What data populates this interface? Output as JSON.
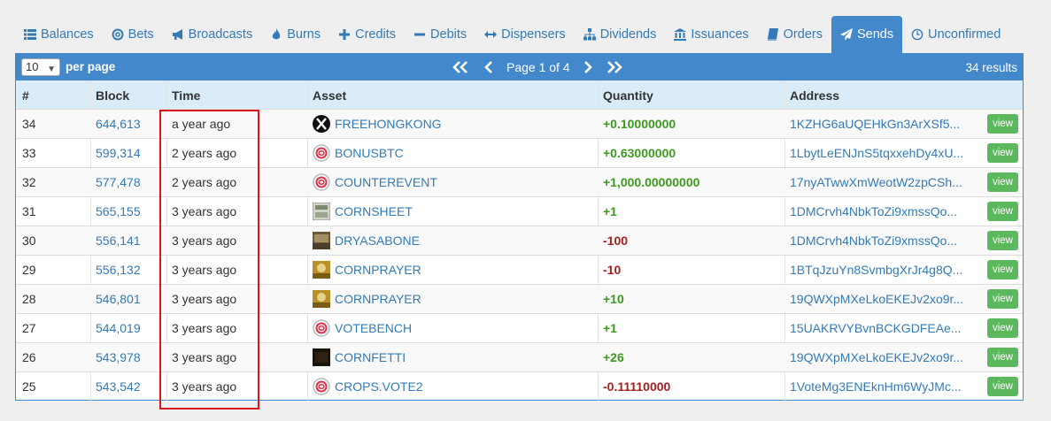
{
  "tabs": [
    {
      "label": "Balances",
      "icon": "list-icon"
    },
    {
      "label": "Bets",
      "icon": "bullseye-icon"
    },
    {
      "label": "Broadcasts",
      "icon": "bullhorn-icon"
    },
    {
      "label": "Burns",
      "icon": "fire-icon"
    },
    {
      "label": "Credits",
      "icon": "plus-icon"
    },
    {
      "label": "Debits",
      "icon": "minus-icon"
    },
    {
      "label": "Dispensers",
      "icon": "arrows-h-icon"
    },
    {
      "label": "Dividends",
      "icon": "sitemap-icon"
    },
    {
      "label": "Issuances",
      "icon": "bank-icon"
    },
    {
      "label": "Orders",
      "icon": "book-icon"
    },
    {
      "label": "Sends",
      "icon": "paper-plane-icon",
      "active": true
    },
    {
      "label": "Unconfirmed",
      "icon": "clock-icon"
    }
  ],
  "toolbar": {
    "per_page_value": "10",
    "per_page_label": "per page",
    "page_label": "Page 1 of 4",
    "results": "34 results"
  },
  "table": {
    "headers": {
      "num": "#",
      "block": "Block",
      "time": "Time",
      "asset": "Asset",
      "quantity": "Quantity",
      "address": "Address"
    },
    "view_label": "view",
    "rows": [
      {
        "num": "34",
        "block": "644,613",
        "time": "a year ago",
        "asset": "FREEHONGKONG",
        "asset_icon": "x-logo-icon",
        "quantity": "+0.10000000",
        "sign": "pos",
        "address": "1KZHG6aUQEHkGn3ArXSf5..."
      },
      {
        "num": "33",
        "block": "599,314",
        "time": "2 years ago",
        "asset": "BONUSBTC",
        "asset_icon": "counterparty-icon",
        "quantity": "+0.63000000",
        "sign": "pos",
        "address": "1LbytLeENJnS5tqxxehDy4xU..."
      },
      {
        "num": "32",
        "block": "577,478",
        "time": "2 years ago",
        "asset": "COUNTEREVENT",
        "asset_icon": "counterparty-icon",
        "quantity": "+1,000.00000000",
        "sign": "pos",
        "address": "17nyATwwXmWeotW2zpCSh..."
      },
      {
        "num": "31",
        "block": "565,155",
        "time": "3 years ago",
        "asset": "CORNSHEET",
        "asset_icon": "sheet-image-icon",
        "quantity": "+1",
        "sign": "pos",
        "address": "1DMCrvh4NbkToZi9xmssQo..."
      },
      {
        "num": "30",
        "block": "556,141",
        "time": "3 years ago",
        "asset": "DRYASABONE",
        "asset_icon": "photo-image-icon",
        "quantity": "-100",
        "sign": "neg",
        "address": "1DMCrvh4NbkToZi9xmssQo..."
      },
      {
        "num": "29",
        "block": "556,132",
        "time": "3 years ago",
        "asset": "CORNPRAYER",
        "asset_icon": "gold-image-icon",
        "quantity": "-10",
        "sign": "neg",
        "address": "1BTqJzuYn8SvmbgXrJr4g8Q..."
      },
      {
        "num": "28",
        "block": "546,801",
        "time": "3 years ago",
        "asset": "CORNPRAYER",
        "asset_icon": "gold-image-icon",
        "quantity": "+10",
        "sign": "pos",
        "address": "19QWXpMXeLkoEKEJv2xo9r..."
      },
      {
        "num": "27",
        "block": "544,019",
        "time": "3 years ago",
        "asset": "VOTEBENCH",
        "asset_icon": "counterparty-icon",
        "quantity": "+1",
        "sign": "pos",
        "address": "15UAKRVYBvnBCKGDFEAe..."
      },
      {
        "num": "26",
        "block": "543,978",
        "time": "3 years ago",
        "asset": "CORNFETTI",
        "asset_icon": "dark-image-icon",
        "quantity": "+26",
        "sign": "pos",
        "address": "19QWXpMXeLkoEKEJv2xo9r..."
      },
      {
        "num": "25",
        "block": "543,542",
        "time": "3 years ago",
        "asset": "CROPS.VOTE2",
        "asset_icon": "counterparty-icon",
        "quantity": "-0.11110000",
        "sign": "neg",
        "address": "1VoteMg3ENEknHm6WyJMc..."
      }
    ]
  },
  "colors": {
    "accent": "#4488cc",
    "link": "#337ab7",
    "positive": "#3c9a1e",
    "negative": "#a41e1e",
    "view_button": "#5cb85c",
    "highlight": "#d9161e"
  }
}
